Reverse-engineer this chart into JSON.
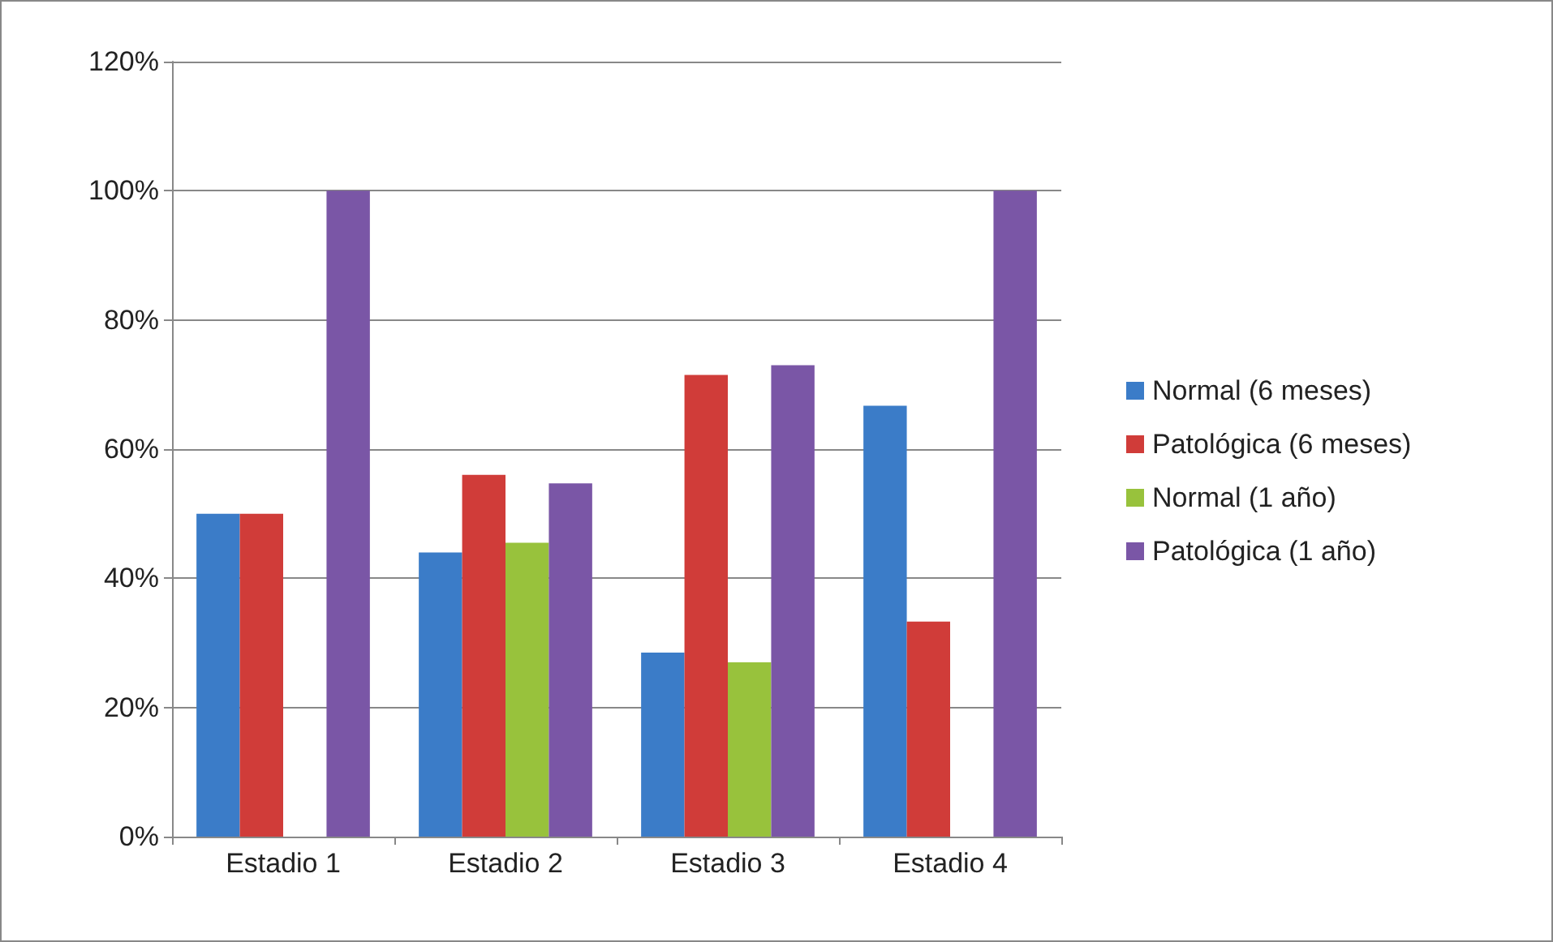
{
  "chart_data": {
    "type": "bar",
    "categories": [
      "Estadio 1",
      "Estadio 2",
      "Estadio 3",
      "Estadio 4"
    ],
    "series": [
      {
        "name": "Normal (6 meses)",
        "color": "#3b7cc8",
        "values": [
          50,
          44,
          28.5,
          66.7
        ]
      },
      {
        "name": "Patológica (6 meses)",
        "color": "#d03c39",
        "values": [
          50,
          56,
          71.5,
          33.3
        ]
      },
      {
        "name": "Normal (1 año)",
        "color": "#98c23c",
        "values": [
          0,
          45.5,
          27,
          0
        ]
      },
      {
        "name": "Patológica (1 año)",
        "color": "#7a56a6",
        "values": [
          100,
          54.7,
          73,
          100
        ]
      }
    ],
    "ylim": [
      0,
      120
    ],
    "yticks": [
      {
        "value": 0,
        "label": "0%"
      },
      {
        "value": 20,
        "label": "20%"
      },
      {
        "value": 40,
        "label": "40%"
      },
      {
        "value": 60,
        "label": "60%"
      },
      {
        "value": 80,
        "label": "80%"
      },
      {
        "value": 100,
        "label": "100%"
      },
      {
        "value": 120,
        "label": "120%"
      }
    ],
    "grid": "y",
    "legend": "right"
  }
}
